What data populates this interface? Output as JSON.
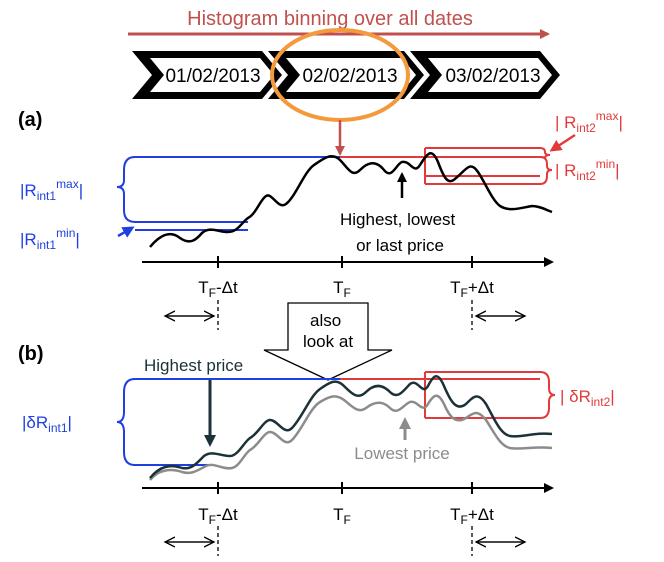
{
  "banner": "Histogram binning over all dates",
  "dates": [
    "01/02/2013",
    "02/02/2013",
    "03/02/2013"
  ],
  "panel_a": {
    "label": "(a)",
    "r_int1_max": {
      "pre": "|R",
      "sub": "int1",
      "sup": "max",
      "post": "|"
    },
    "r_int1_min": {
      "pre": "|R",
      "sub": "int1",
      "sup": "min",
      "post": "|"
    },
    "r_int2_max": {
      "pre": "| R",
      "sub": "int2",
      "sup": "max",
      "post": "|"
    },
    "r_int2_min": {
      "pre": "| R",
      "sub": "int2",
      "sup": "min",
      "post": "|"
    },
    "annotation_lines": [
      "Highest, lowest",
      "or last price"
    ],
    "ticks": [
      {
        "pre": "T",
        "sub": "F",
        "post": "-Δt"
      },
      {
        "pre": "T",
        "sub": "F",
        "post": ""
      },
      {
        "pre": "T",
        "sub": "F",
        "post": "+Δt"
      }
    ]
  },
  "transition_lines": [
    "also",
    "look at"
  ],
  "panel_b": {
    "label": "(b)",
    "highest_price": "Highest price",
    "lowest_price": "Lowest price",
    "d_r_int1": {
      "pre": "|δR",
      "sub": "int1",
      "post": "|"
    },
    "d_r_int2": {
      "pre": "| δR",
      "sub": "int2",
      "post": "|"
    },
    "ticks": [
      {
        "pre": "T",
        "sub": "F",
        "post": "-Δt"
      },
      {
        "pre": "T",
        "sub": "F",
        "post": ""
      },
      {
        "pre": "T",
        "sub": "F",
        "post": "+Δt"
      }
    ]
  },
  "colors": {
    "arrow_red": "#c0504d",
    "interval_red": "#e23a3a",
    "interval_blue": "#1f3fe0",
    "circle_orange": "#f39a3c",
    "dark_series": "#1c3138",
    "gray_series": "#8c8c8c",
    "black": "#000000"
  }
}
